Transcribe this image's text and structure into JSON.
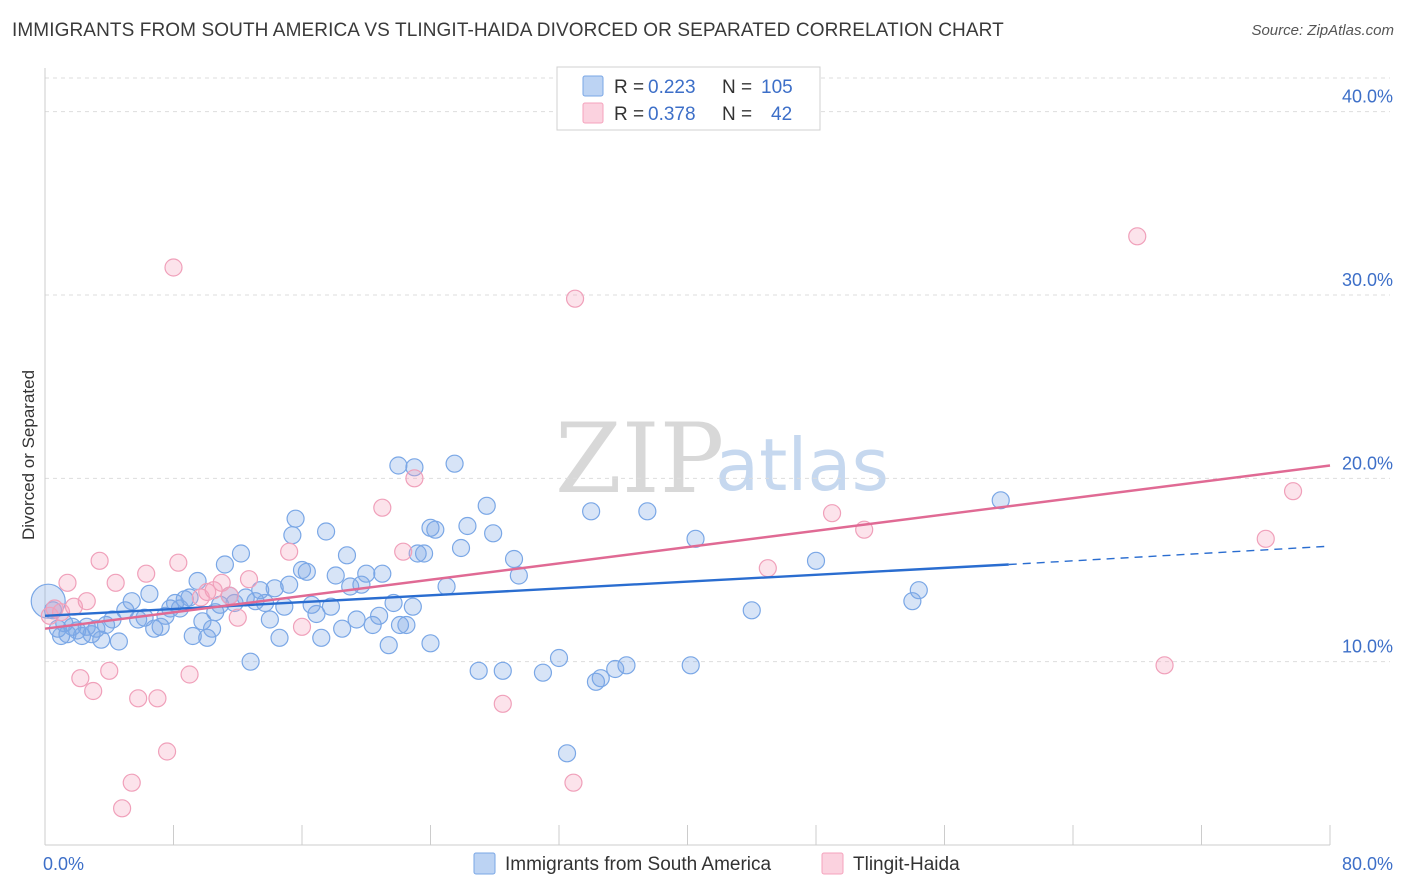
{
  "header": {
    "title": "IMMIGRANTS FROM SOUTH AMERICA VS TLINGIT-HAIDA DIVORCED OR SEPARATED CORRELATION CHART",
    "source": "Source: ZipAtlas.com"
  },
  "watermark": {
    "zip": "ZIP",
    "atlas": "atlas"
  },
  "colors": {
    "blue": "#7aa7e6",
    "blue_line": "#2a6dd0",
    "pink": "#f5a3bd",
    "pink_line": "#e06a94",
    "axis_label": "#3d6fc8",
    "grid": "#dddddd"
  },
  "legend": {
    "rows": [
      {
        "r_label": "R = ",
        "r_value": "0.223",
        "n_label": "N = ",
        "n_value": "105"
      },
      {
        "r_label": "R = ",
        "r_value": "0.378",
        "n_label": "N = ",
        "n_value": "42"
      }
    ]
  },
  "bottom_legend": [
    "Immigrants from South America",
    "Tlingit-Haida"
  ],
  "chart_data": {
    "type": "scatter",
    "title": "IMMIGRANTS FROM SOUTH AMERICA VS TLINGIT-HAIDA DIVORCED OR SEPARATED CORRELATION CHART",
    "ylabel": "Divorced or Separated",
    "xlim": [
      0,
      80
    ],
    "ylim": [
      0,
      42
    ],
    "x_tick_labels": [
      "0.0%",
      "80.0%"
    ],
    "y_ticks": [
      10,
      20,
      30,
      40
    ],
    "y_tick_labels": [
      "10.0%",
      "20.0%",
      "30.0%",
      "40.0%"
    ],
    "grid": true,
    "legend_position": "top-center",
    "series": [
      {
        "name": "Immigrants from South America",
        "color": "#7aa7e6",
        "r": 0.223,
        "n": 105,
        "trend": {
          "x0": 0,
          "y0": 12.5,
          "x1": 60,
          "y1": 15.3,
          "dashed_to_x": 80,
          "dashed_to_y": 16.3
        },
        "points": [
          [
            0.2,
            13.3
          ],
          [
            0.5,
            12.8
          ],
          [
            0.8,
            11.8
          ],
          [
            1.0,
            11.4
          ],
          [
            1.2,
            12.1
          ],
          [
            1.4,
            11.5
          ],
          [
            1.7,
            11.9
          ],
          [
            2.0,
            11.7
          ],
          [
            2.3,
            11.4
          ],
          [
            2.6,
            11.9
          ],
          [
            2.9,
            11.5
          ],
          [
            3.2,
            11.8
          ],
          [
            3.5,
            11.2
          ],
          [
            3.8,
            12.0
          ],
          [
            4.2,
            12.3
          ],
          [
            4.6,
            11.1
          ],
          [
            5.0,
            12.8
          ],
          [
            5.4,
            13.3
          ],
          [
            5.8,
            12.3
          ],
          [
            6.2,
            12.4
          ],
          [
            6.5,
            13.7
          ],
          [
            6.8,
            11.8
          ],
          [
            7.2,
            11.9
          ],
          [
            7.5,
            12.5
          ],
          [
            7.8,
            12.9
          ],
          [
            8.1,
            13.2
          ],
          [
            8.4,
            12.9
          ],
          [
            8.7,
            13.4
          ],
          [
            9.0,
            13.5
          ],
          [
            9.2,
            11.4
          ],
          [
            9.5,
            14.4
          ],
          [
            9.8,
            12.2
          ],
          [
            10.1,
            11.3
          ],
          [
            10.4,
            11.8
          ],
          [
            10.6,
            12.7
          ],
          [
            10.9,
            13.1
          ],
          [
            11.2,
            15.3
          ],
          [
            11.5,
            13.6
          ],
          [
            11.8,
            13.2
          ],
          [
            12.2,
            15.9
          ],
          [
            12.5,
            13.5
          ],
          [
            12.8,
            10.0
          ],
          [
            13.1,
            13.3
          ],
          [
            13.4,
            13.9
          ],
          [
            13.7,
            13.2
          ],
          [
            14.0,
            12.3
          ],
          [
            14.3,
            14.0
          ],
          [
            14.6,
            11.3
          ],
          [
            14.9,
            13.0
          ],
          [
            15.2,
            14.2
          ],
          [
            15.4,
            16.9
          ],
          [
            15.6,
            17.8
          ],
          [
            16.0,
            15.0
          ],
          [
            16.3,
            14.9
          ],
          [
            16.6,
            13.1
          ],
          [
            16.9,
            12.6
          ],
          [
            17.2,
            11.3
          ],
          [
            17.5,
            17.1
          ],
          [
            17.8,
            13.0
          ],
          [
            18.1,
            14.7
          ],
          [
            18.5,
            11.8
          ],
          [
            18.8,
            15.8
          ],
          [
            19.0,
            14.1
          ],
          [
            19.4,
            12.3
          ],
          [
            19.7,
            14.2
          ],
          [
            20.0,
            14.8
          ],
          [
            20.4,
            12.0
          ],
          [
            20.8,
            12.5
          ],
          [
            21.0,
            14.8
          ],
          [
            21.4,
            10.9
          ],
          [
            21.7,
            13.2
          ],
          [
            22.1,
            12.0
          ],
          [
            22.5,
            12.0
          ],
          [
            22.9,
            13.0
          ],
          [
            23.2,
            15.9
          ],
          [
            23.6,
            15.9
          ],
          [
            24.0,
            17.3
          ],
          [
            24.3,
            17.2
          ],
          [
            22.0,
            20.7
          ],
          [
            23.0,
            20.6
          ],
          [
            24.0,
            11.0
          ],
          [
            25.0,
            14.1
          ],
          [
            25.5,
            20.8
          ],
          [
            25.9,
            16.2
          ],
          [
            26.3,
            17.4
          ],
          [
            27.0,
            9.5
          ],
          [
            27.5,
            18.5
          ],
          [
            27.9,
            17.0
          ],
          [
            28.5,
            9.5
          ],
          [
            29.2,
            15.6
          ],
          [
            29.5,
            14.7
          ],
          [
            31.0,
            9.4
          ],
          [
            32.0,
            10.2
          ],
          [
            32.5,
            5.0
          ],
          [
            34.0,
            18.2
          ],
          [
            34.3,
            8.9
          ],
          [
            34.6,
            9.1
          ],
          [
            35.5,
            9.6
          ],
          [
            36.2,
            9.8
          ],
          [
            37.5,
            18.2
          ],
          [
            40.5,
            16.7
          ],
          [
            40.2,
            9.8
          ],
          [
            44.0,
            12.8
          ],
          [
            48.0,
            15.5
          ],
          [
            54.0,
            13.3
          ],
          [
            54.4,
            13.9
          ],
          [
            59.5,
            18.8
          ]
        ]
      },
      {
        "name": "Tlingit-Haida",
        "color": "#f5a3bd",
        "r": 0.378,
        "n": 42,
        "trend": {
          "x0": 0,
          "y0": 11.8,
          "x1": 80,
          "y1": 20.7
        },
        "points": [
          [
            0.3,
            12.5
          ],
          [
            0.6,
            12.9
          ],
          [
            1.0,
            12.7
          ],
          [
            1.4,
            14.3
          ],
          [
            1.8,
            13.0
          ],
          [
            2.2,
            9.1
          ],
          [
            2.6,
            13.3
          ],
          [
            3.0,
            8.4
          ],
          [
            3.4,
            15.5
          ],
          [
            4.0,
            9.5
          ],
          [
            4.4,
            14.3
          ],
          [
            4.8,
            2.0
          ],
          [
            5.4,
            3.4
          ],
          [
            5.8,
            8.0
          ],
          [
            6.3,
            14.8
          ],
          [
            7.0,
            8.0
          ],
          [
            7.6,
            5.1
          ],
          [
            8.0,
            31.5
          ],
          [
            8.3,
            15.4
          ],
          [
            9.0,
            9.3
          ],
          [
            9.7,
            13.5
          ],
          [
            10.1,
            13.8
          ],
          [
            10.5,
            13.9
          ],
          [
            11.0,
            14.3
          ],
          [
            11.5,
            13.6
          ],
          [
            12.0,
            12.4
          ],
          [
            12.7,
            14.5
          ],
          [
            15.2,
            16.0
          ],
          [
            16.0,
            11.9
          ],
          [
            21.0,
            18.4
          ],
          [
            22.3,
            16.0
          ],
          [
            23.0,
            20.0
          ],
          [
            28.5,
            7.7
          ],
          [
            33.0,
            29.8
          ],
          [
            32.9,
            3.4
          ],
          [
            45.0,
            15.1
          ],
          [
            49.0,
            18.1
          ],
          [
            51.0,
            17.2
          ],
          [
            68.0,
            33.2
          ],
          [
            69.7,
            9.8
          ],
          [
            76.0,
            16.7
          ],
          [
            77.7,
            19.3
          ]
        ]
      }
    ]
  }
}
